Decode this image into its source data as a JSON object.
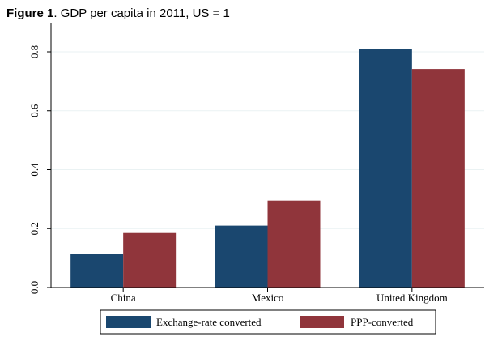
{
  "figure": {
    "label": "Figure 1",
    "caption": ". GDP per capita in 2011, US = 1"
  },
  "chart_data": {
    "type": "bar",
    "categories": [
      "China",
      "Mexico",
      "United Kingdom"
    ],
    "series": [
      {
        "name": "Exchange-rate converted",
        "values": [
          0.113,
          0.21,
          0.81
        ],
        "color": "#1a476f"
      },
      {
        "name": "PPP-converted",
        "values": [
          0.185,
          0.295,
          0.742
        ],
        "color": "#90353b"
      }
    ],
    "ylim": [
      0,
      0.8
    ],
    "yticks": [
      0.0,
      0.2,
      0.4,
      0.6,
      0.8
    ],
    "ytick_labels": [
      "0.0",
      "0.2",
      "0.4",
      "0.6",
      "0.8"
    ],
    "grid": true,
    "legend_position": "bottom",
    "title": "GDP per capita in 2011, US = 1"
  }
}
